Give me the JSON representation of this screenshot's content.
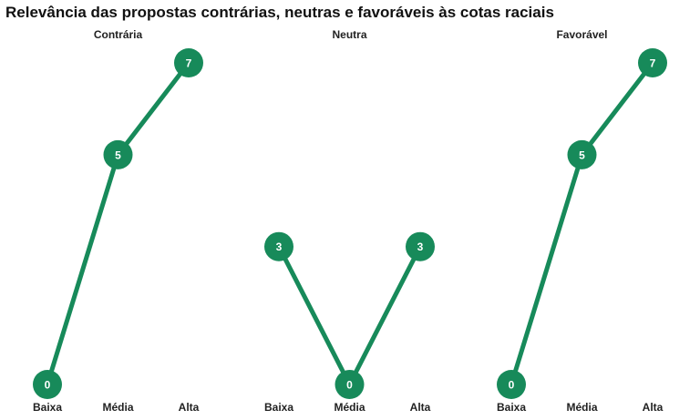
{
  "title": "Relevância das propostas contrárias, neutras e favoráveis às cotas raciais",
  "colors": {
    "line": "#178a5a",
    "point": "#178a5a",
    "label": "#ffffff"
  },
  "chart_data": {
    "type": "line",
    "title": "Relevância das propostas contrárias, neutras e favoráveis às cotas raciais",
    "categories": [
      "Baixa",
      "Média",
      "Alta"
    ],
    "ylim": [
      0,
      7
    ],
    "grid": false,
    "panels": [
      {
        "name": "Contrária",
        "values": [
          0,
          5,
          7
        ]
      },
      {
        "name": "Neutra",
        "values": [
          3,
          0,
          3
        ]
      },
      {
        "name": "Favorável",
        "values": [
          0,
          5,
          7
        ]
      }
    ]
  }
}
